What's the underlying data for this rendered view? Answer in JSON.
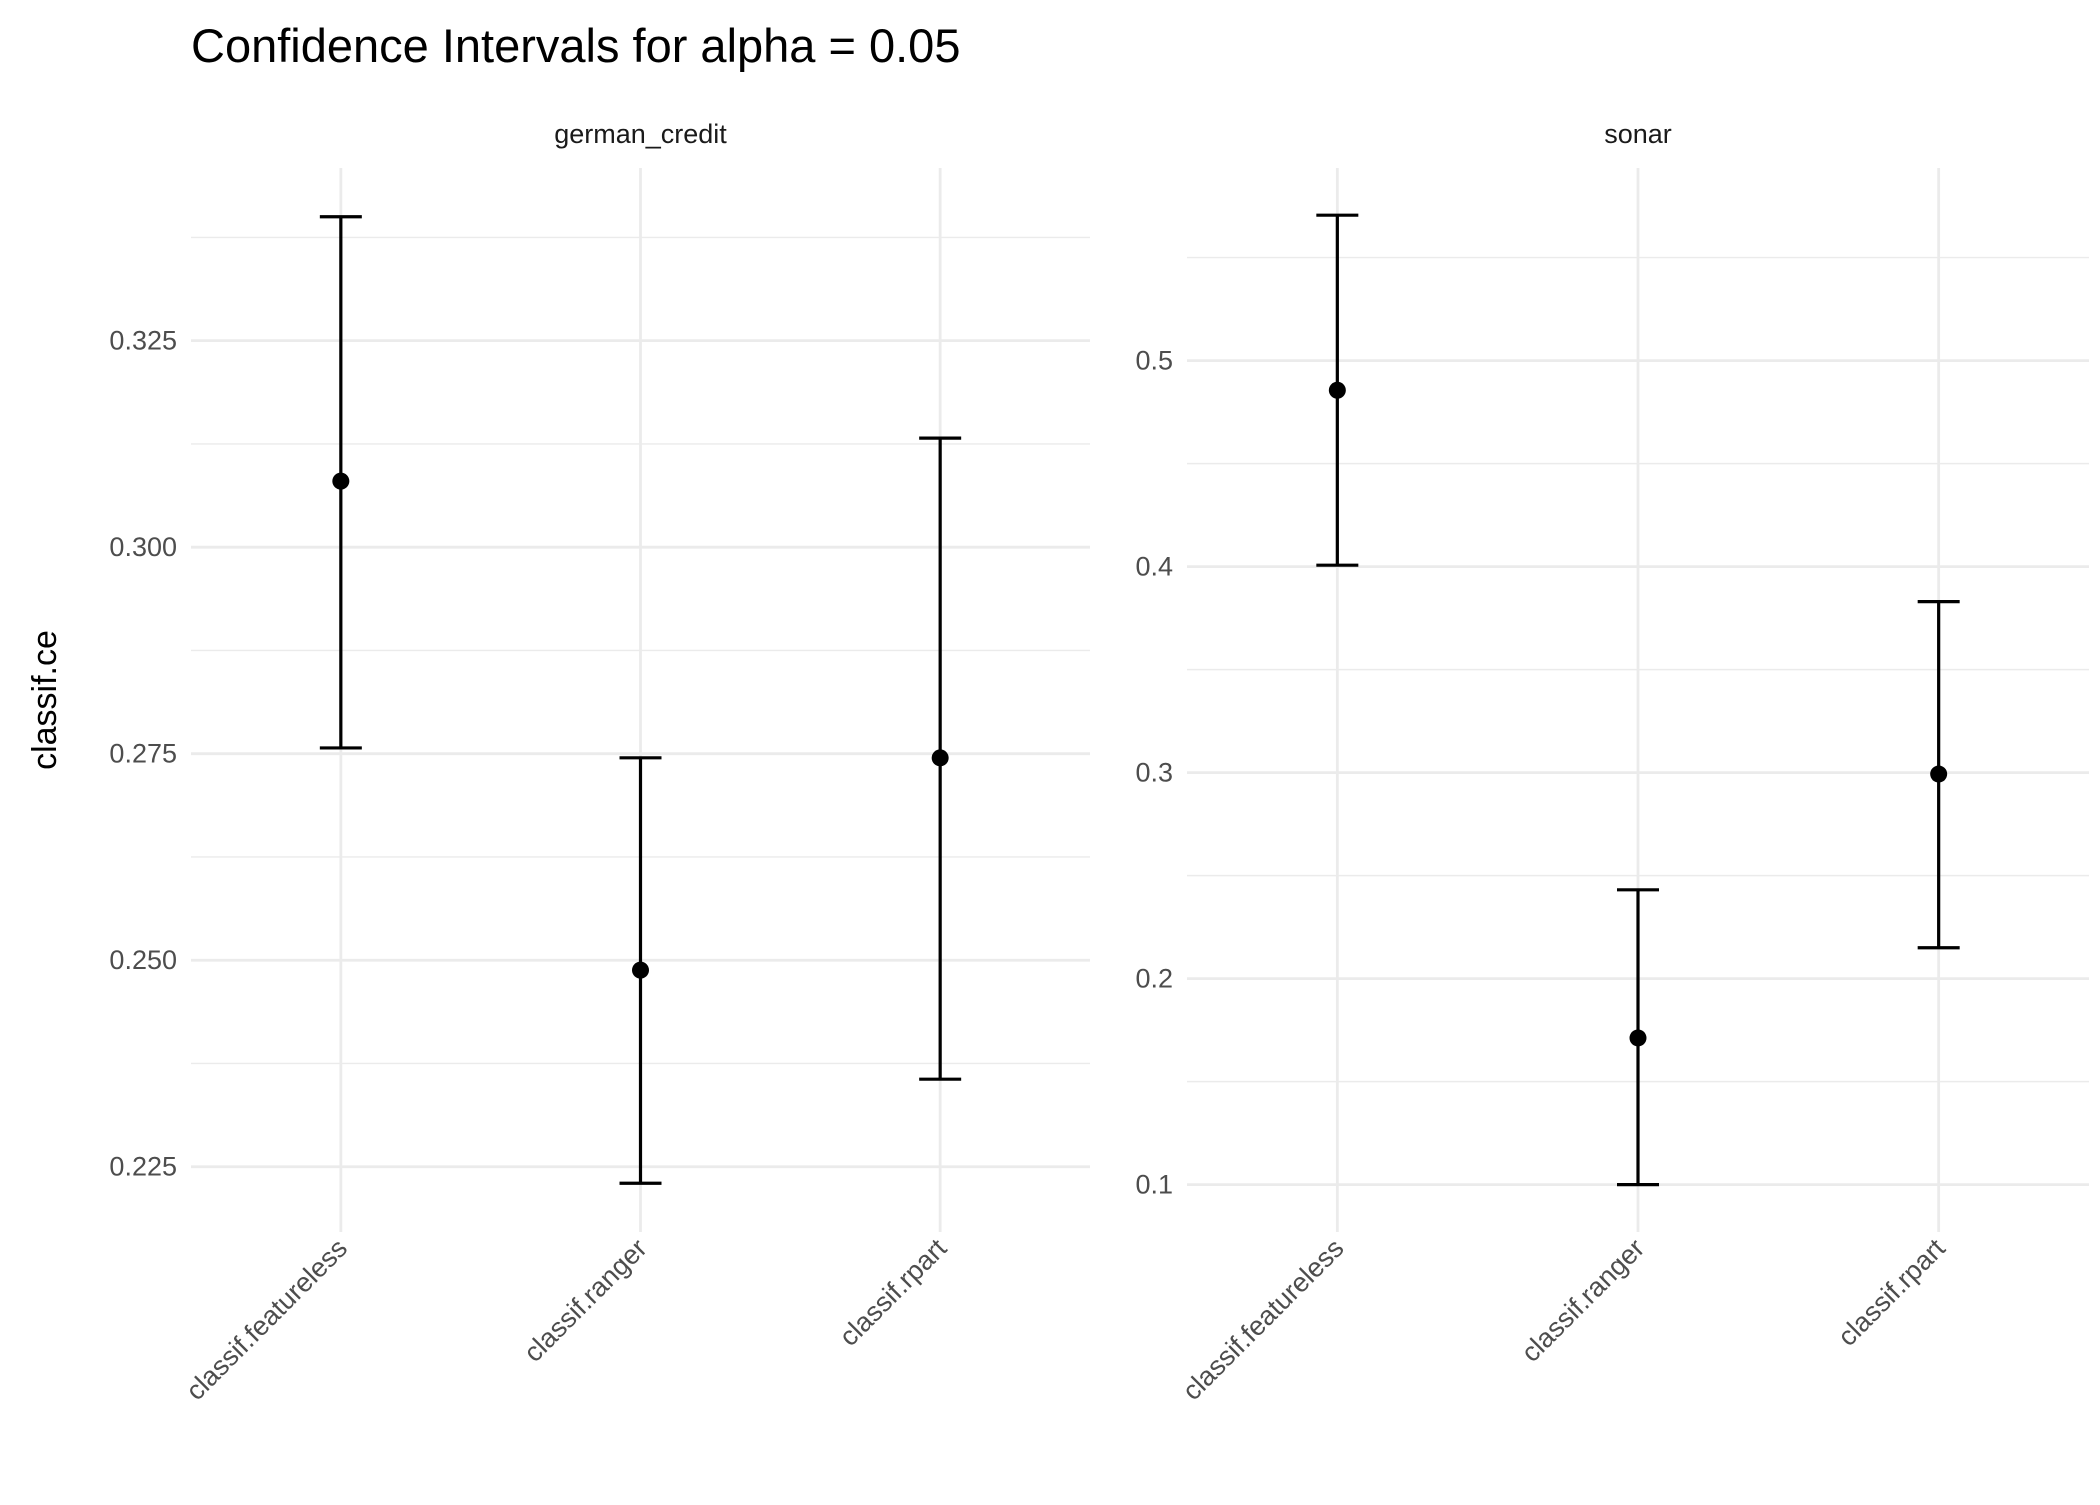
{
  "chart_data": {
    "type": "errorbar",
    "title": "Confidence Intervals for alpha = 0.05",
    "xlabel": "",
    "ylabel": "classif.ce",
    "grid": true,
    "categories": [
      "classif.featureless",
      "classif.ranger",
      "classif.rpart"
    ],
    "panels": [
      {
        "name": "german_credit",
        "ylim": [
          0.2171,
          0.3459
        ],
        "yticks": [
          0.225,
          0.25,
          0.275,
          0.3,
          0.325
        ],
        "ytick_labels": [
          "0.225",
          "0.250",
          "0.275",
          "0.300",
          "0.325"
        ],
        "points": [
          {
            "category": "classif.featureless",
            "estimate": 0.308,
            "lower": 0.2757,
            "upper": 0.34
          },
          {
            "category": "classif.ranger",
            "estimate": 0.2488,
            "lower": 0.223,
            "upper": 0.2745
          },
          {
            "category": "classif.rpart",
            "estimate": 0.2745,
            "lower": 0.2356,
            "upper": 0.3132
          }
        ]
      },
      {
        "name": "sonar",
        "ylim": [
          0.077,
          0.5935
        ],
        "yticks": [
          0.1,
          0.2,
          0.3,
          0.4,
          0.5
        ],
        "ytick_labels": [
          "0.1",
          "0.2",
          "0.3",
          "0.4",
          "0.5"
        ],
        "points": [
          {
            "category": "classif.featureless",
            "estimate": 0.4856,
            "lower": 0.4007,
            "upper": 0.5706
          },
          {
            "category": "classif.ranger",
            "estimate": 0.1712,
            "lower": 0.1,
            "upper": 0.2431
          },
          {
            "category": "classif.rpart",
            "estimate": 0.2993,
            "lower": 0.215,
            "upper": 0.383
          }
        ]
      }
    ],
    "colors": {
      "mark": "#000000",
      "grid": "#ebebeb",
      "text": "#4d4d4d"
    }
  }
}
